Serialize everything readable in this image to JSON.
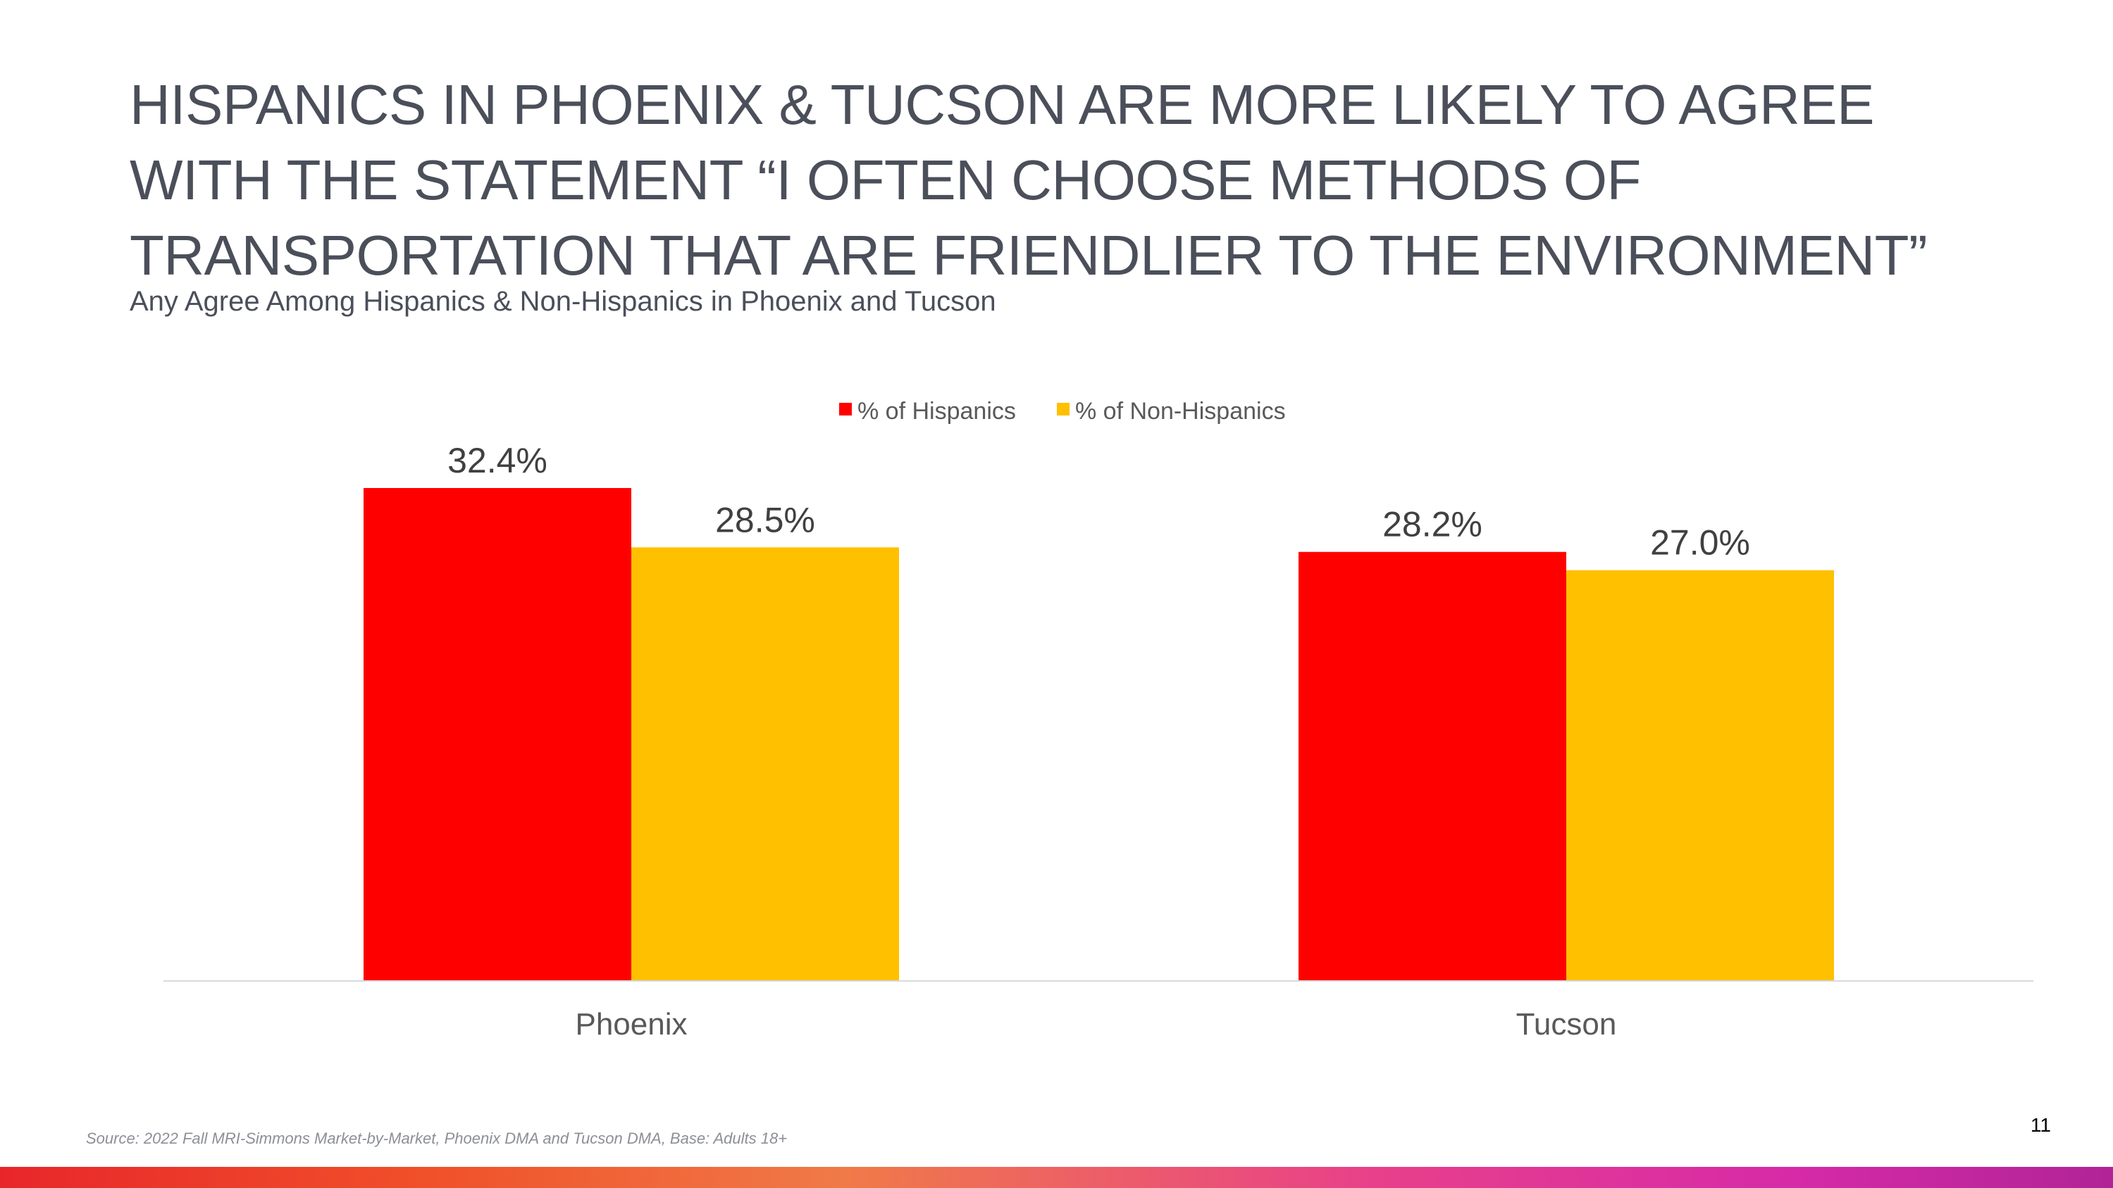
{
  "slide": {
    "title_lines": [
      "HISPANICS IN PHOENIX & TUCSON ARE MORE LIKELY TO AGREE",
      "WITH THE STATEMENT “I OFTEN CHOOSE METHODS OF",
      "TRANSPORTATION THAT ARE FRIENDLIER TO THE ENVIRONMENT”"
    ],
    "subtitle": "Any Agree Among Hispanics & Non-Hispanics in Phoenix and Tucson",
    "source": "Source: 2022 Fall MRI-Simmons Market-by-Market, Phoenix DMA and Tucson DMA, Base: Adults 18+",
    "page_number": "11"
  },
  "chart_data": {
    "type": "bar",
    "categories": [
      "Phoenix",
      "Tucson"
    ],
    "series": [
      {
        "name": "% of Hispanics",
        "values": [
          32.4,
          28.2
        ],
        "labels": [
          "32.4%",
          "28.2%"
        ],
        "color": "#ff0000"
      },
      {
        "name": "% of Non-Hispanics",
        "values": [
          28.5,
          27.0
        ],
        "labels": [
          "28.5%",
          "27.0%"
        ],
        "color": "#ffc000"
      }
    ],
    "ylim": [
      0,
      32.4
    ],
    "grid": false,
    "legend_position": "top"
  }
}
